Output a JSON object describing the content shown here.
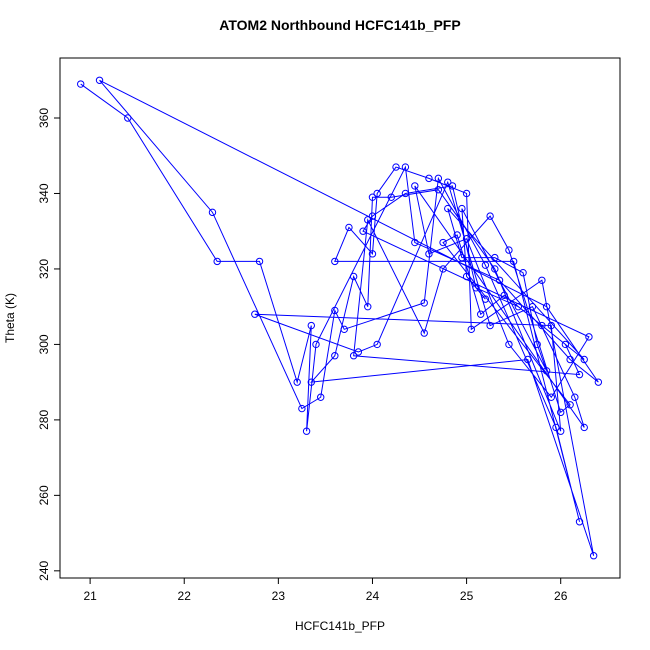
{
  "chart_data": {
    "type": "line",
    "title": "ATOM2 Northbound HCFC141b_PFP",
    "x_label": "HCFC141b_PFP",
    "y_label": "Theta (K)",
    "markers": "open-circle",
    "xlim": [
      20.68,
      26.63
    ],
    "ylim": [
      238.1,
      375.9
    ],
    "xticks": [
      21,
      22,
      23,
      24,
      25,
      26
    ],
    "yticks": [
      240,
      260,
      280,
      300,
      320,
      340,
      360
    ],
    "series": [
      {
        "name": "HCFC141b_PFP",
        "color": "#0000ff",
        "x": [
          20.9,
          21.4,
          22.35,
          22.8,
          23.2,
          23.35,
          23.3,
          23.4,
          24.35,
          24.45,
          25.35,
          26.1,
          26.4,
          25.85,
          21.1,
          22.3,
          23.25,
          23.45,
          23.6,
          23.7,
          24.55,
          24.7,
          25.2,
          25.95,
          26.2,
          25.5,
          23.6,
          23.75,
          24.0,
          24.05,
          24.25,
          24.6,
          25.0,
          25.05,
          25.8,
          26.35,
          25.65,
          23.35,
          23.6,
          23.8,
          23.95,
          24.0,
          24.2,
          24.7,
          25.3,
          26.0,
          25.9,
          22.75,
          23.85,
          24.05,
          24.8,
          25.25,
          25.7,
          26.15,
          26.25,
          24.45,
          24.6,
          25.0,
          25.45,
          25.9,
          26.3,
          23.9,
          24.0,
          24.35,
          24.85,
          25.1,
          25.55,
          26.05,
          26.2,
          23.8,
          23.95,
          24.55,
          24.75,
          25.25,
          25.45,
          26.0,
          26.1,
          24.75,
          24.9,
          25.15,
          25.4,
          25.8,
          26.25,
          24.8,
          24.95,
          25.3,
          25.6,
          25.75,
          25.85,
          24.95,
          25.0,
          25.2
        ],
        "values": [
          369,
          360,
          322,
          322,
          290,
          305,
          277,
          300,
          347,
          327,
          317,
          296,
          290,
          310,
          370,
          335,
          283,
          286,
          309,
          304,
          311,
          344,
          321,
          278,
          253,
          322,
          322,
          331,
          324,
          340,
          347,
          344,
          340,
          304,
          317,
          244,
          296,
          290,
          297,
          318,
          310,
          339,
          339,
          341,
          320,
          277,
          305,
          308,
          298,
          300,
          343,
          305,
          310,
          286,
          278,
          342,
          324,
          328,
          300,
          286,
          302,
          330,
          334,
          340,
          342,
          315,
          310,
          300,
          292,
          297,
          333,
          303,
          320,
          334,
          325,
          282,
          284,
          327,
          329,
          308,
          313,
          305,
          296,
          336,
          323,
          323,
          319,
          300,
          293,
          336,
          318,
          312
        ]
      }
    ]
  }
}
